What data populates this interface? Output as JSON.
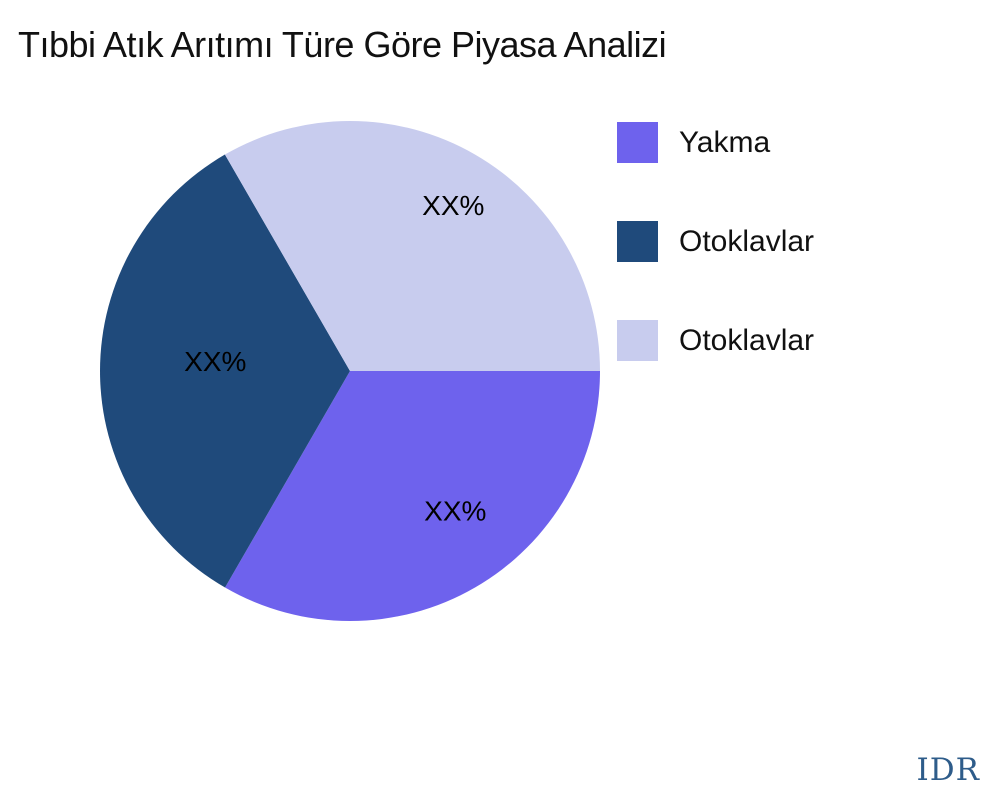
{
  "chart_data": {
    "type": "pie",
    "title": "Tıbbi Atık Arıtımı Türe Göre Piyasa Analizi",
    "labels": [
      "Yakma",
      "Otoklavlar",
      "Otoklavlar"
    ],
    "values": [
      33.33,
      33.33,
      33.34
    ],
    "slice_labels": [
      "XX%",
      "XX%",
      "XX%"
    ],
    "colors": [
      "#6e62ed",
      "#1f4a7b",
      "#c8ccee"
    ],
    "slice_label_color": "#000000",
    "legend_position": "right",
    "start_angle_deg": 0,
    "direction": "clockwise",
    "grid": "off"
  },
  "legend": {
    "items": [
      {
        "label": "Yakma",
        "color": "#6e62ed"
      },
      {
        "label": "Otoklavlar",
        "color": "#1f4a7b"
      },
      {
        "label": "Otoklavlar",
        "color": "#c8ccee"
      }
    ]
  },
  "watermark": {
    "text": "IDR",
    "color": "#2e5c8a"
  }
}
